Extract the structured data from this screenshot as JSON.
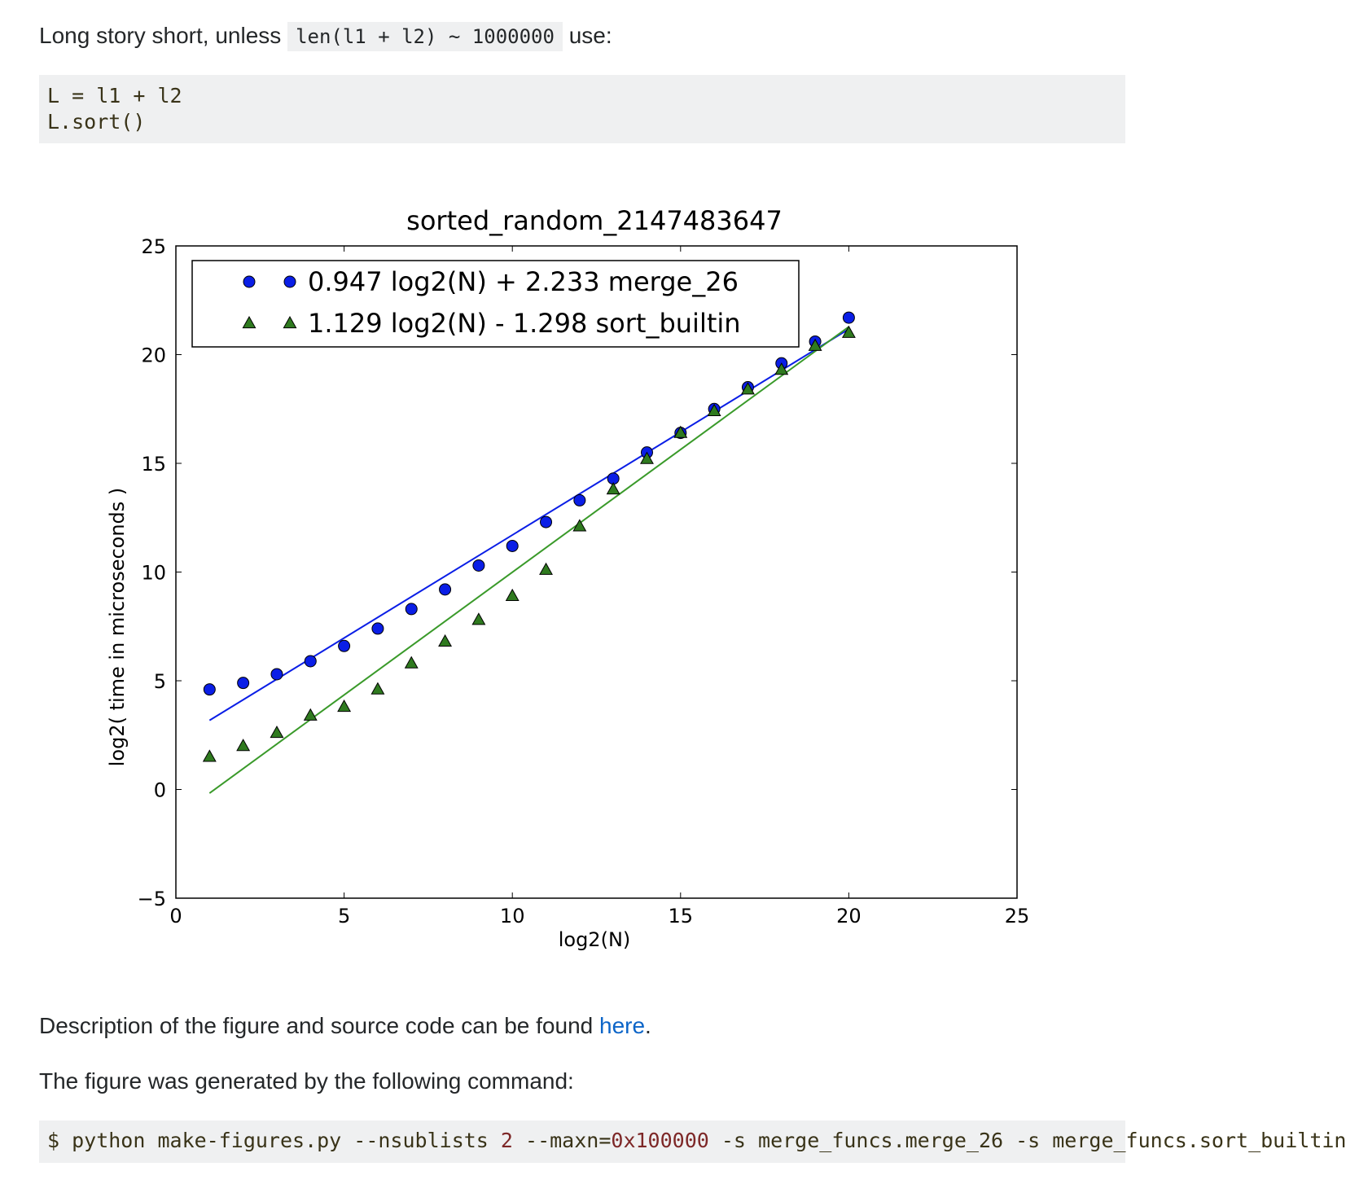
{
  "intro": {
    "prefix": "Long story short, unless",
    "code": "len(l1 + l2) ~ 1000000",
    "suffix": "use:"
  },
  "code_block_1": {
    "lines": [
      "L = l1 + l2",
      "L.sort()"
    ]
  },
  "chart_data": {
    "type": "scatter",
    "title": "sorted_random_2147483647",
    "xlabel": "log2(N)",
    "ylabel": "log2( time in microseconds )",
    "xlim": [
      0,
      25
    ],
    "ylim": [
      -5,
      25
    ],
    "xticks": [
      "0",
      "5",
      "10",
      "15",
      "20",
      "25"
    ],
    "yticks": [
      "−5",
      "0",
      "5",
      "10",
      "15",
      "20",
      "25"
    ],
    "legend_position": "top-left",
    "grid": false,
    "series": [
      {
        "name": "0.947 log2(N) + 2.233 merge_26",
        "marker": "circle",
        "color": "#0a1ee6",
        "fit": {
          "slope": 0.947,
          "intercept": 2.233
        },
        "x": [
          1,
          2,
          3,
          4,
          5,
          6,
          7,
          8,
          9,
          10,
          11,
          12,
          13,
          14,
          15,
          16,
          17,
          18,
          19,
          20
        ],
        "y": [
          4.6,
          4.9,
          5.3,
          5.9,
          6.6,
          7.4,
          8.3,
          9.2,
          10.3,
          11.2,
          12.3,
          13.3,
          14.3,
          15.5,
          16.4,
          17.5,
          18.5,
          19.6,
          20.6,
          21.7
        ]
      },
      {
        "name": "1.129 log2(N) - 1.298 sort_builtin",
        "marker": "triangle",
        "color": "#2f7a1f",
        "line_color": "#3a9a2a",
        "fit": {
          "slope": 1.129,
          "intercept": -1.298
        },
        "x": [
          1,
          2,
          3,
          4,
          5,
          6,
          7,
          8,
          9,
          10,
          11,
          12,
          13,
          14,
          15,
          16,
          17,
          18,
          19,
          20
        ],
        "y": [
          1.5,
          2.0,
          2.6,
          3.4,
          3.8,
          4.6,
          5.8,
          6.8,
          7.8,
          8.9,
          10.1,
          12.1,
          13.8,
          15.2,
          16.4,
          17.4,
          18.4,
          19.3,
          20.4,
          21.0
        ]
      }
    ]
  },
  "description": {
    "prefix": "Description of the figure and source code can be found",
    "link_text": "here",
    "suffix": "."
  },
  "command_intro": "The figure was generated by the following command:",
  "command": {
    "part1": "$ python make-figures.py --nsublists ",
    "num1": "2",
    "part2": " --maxn=",
    "num2": "0x100000",
    "part3": " -s merge_funcs.merge_26 -s merge_funcs.sort_builtin"
  }
}
